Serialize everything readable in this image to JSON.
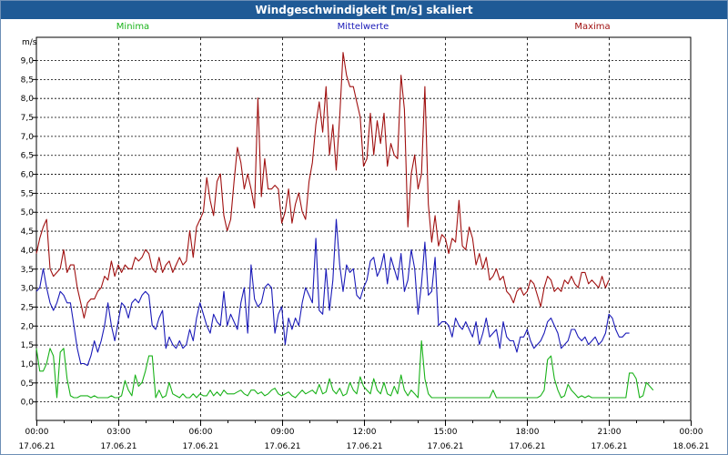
{
  "window": {
    "title": "Windgeschwindigkeit [m/s] skaliert"
  },
  "chart_data": {
    "type": "line",
    "title": "Windgeschwindigkeit [m/s] skaliert",
    "ylabel": "m/s",
    "ylim": [
      -0.5,
      9.6
    ],
    "yticks": [
      "9,0",
      "8,5",
      "8,0",
      "7,5",
      "7,0",
      "6,5",
      "6,0",
      "5,5",
      "5,0",
      "4,5",
      "4,0",
      "3,5",
      "3,0",
      "2,5",
      "2,0",
      "1,5",
      "1,0",
      "0,5",
      "0,0"
    ],
    "xticks": [
      {
        "time": "00:00",
        "date": "17.06.21"
      },
      {
        "time": "03:00",
        "date": "17.06.21"
      },
      {
        "time": "06:00",
        "date": "17.06.21"
      },
      {
        "time": "09:00",
        "date": "17.06.21"
      },
      {
        "time": "12:00",
        "date": "17.06.21"
      },
      {
        "time": "15:00",
        "date": "17.06.21"
      },
      {
        "time": "18:00",
        "date": "17.06.21"
      },
      {
        "time": "21:00",
        "date": "17.06.21"
      },
      {
        "time": "00:00",
        "date": "18.06.21"
      }
    ],
    "x_step_hours": 0.125,
    "grid": true,
    "legend_position": "top",
    "series": [
      {
        "name": "Minima",
        "color": "#19b219",
        "values": [
          1.4,
          0.8,
          0.8,
          1.0,
          1.4,
          1.2,
          0.1,
          1.3,
          1.4,
          0.6,
          0.15,
          0.1,
          0.1,
          0.15,
          0.15,
          0.15,
          0.1,
          0.15,
          0.1,
          0.1,
          0.1,
          0.1,
          0.15,
          0.1,
          0.1,
          0.15,
          0.55,
          0.3,
          0.15,
          0.7,
          0.4,
          0.5,
          0.8,
          1.2,
          1.2,
          0.1,
          0.3,
          0.1,
          0.15,
          0.5,
          0.2,
          0.15,
          0.1,
          0.2,
          0.1,
          0.1,
          0.2,
          0.1,
          0.2,
          0.15,
          0.15,
          0.3,
          0.15,
          0.25,
          0.15,
          0.3,
          0.2,
          0.2,
          0.2,
          0.25,
          0.3,
          0.2,
          0.15,
          0.3,
          0.3,
          0.2,
          0.25,
          0.15,
          0.2,
          0.3,
          0.35,
          0.2,
          0.15,
          0.2,
          0.25,
          0.15,
          0.1,
          0.2,
          0.3,
          0.2,
          0.25,
          0.3,
          0.2,
          0.45,
          0.2,
          0.25,
          0.6,
          0.3,
          0.2,
          0.35,
          0.15,
          0.2,
          0.5,
          0.3,
          0.2,
          0.65,
          0.4,
          0.3,
          0.2,
          0.6,
          0.3,
          0.2,
          0.5,
          0.2,
          0.15,
          0.4,
          0.2,
          0.7,
          0.3,
          0.15,
          0.3,
          0.2,
          0.1,
          1.6,
          0.6,
          0.2,
          0.1,
          0.1,
          0.1,
          0.1,
          0.1,
          0.1,
          0.1,
          0.1,
          0.1,
          0.1,
          0.1,
          0.1,
          0.1,
          0.1,
          0.1,
          0.1,
          0.1,
          0.1,
          0.3,
          0.1,
          0.1,
          0.1,
          0.1,
          0.1,
          0.1,
          0.1,
          0.1,
          0.1,
          0.1,
          0.1,
          0.1,
          0.1,
          0.15,
          0.3,
          1.1,
          1.2,
          0.6,
          0.3,
          0.1,
          0.15,
          0.45,
          0.3,
          0.2,
          0.1,
          0.15,
          0.1,
          0.15,
          0.1,
          0.1,
          0.1,
          0.1,
          0.1,
          0.1,
          0.1,
          0.1,
          0.1,
          0.1,
          0.1,
          0.75,
          0.75,
          0.6,
          0.1,
          0.15,
          0.5,
          0.4,
          0.3
        ]
      },
      {
        "name": "Mittelwerte",
        "color": "#1a1ab8",
        "values": [
          2.9,
          3.0,
          3.5,
          3.0,
          2.6,
          2.4,
          2.6,
          2.9,
          2.8,
          2.6,
          2.6,
          2.0,
          1.4,
          1.0,
          1.0,
          0.95,
          1.2,
          1.6,
          1.3,
          1.6,
          2.0,
          2.6,
          2.0,
          1.6,
          2.1,
          2.6,
          2.5,
          2.2,
          2.6,
          2.7,
          2.6,
          2.8,
          2.9,
          2.8,
          2.0,
          1.9,
          2.2,
          2.4,
          1.4,
          1.7,
          1.5,
          1.4,
          1.6,
          1.4,
          1.5,
          1.9,
          1.6,
          2.2,
          2.6,
          2.3,
          2.0,
          1.8,
          2.3,
          2.1,
          2.0,
          2.9,
          2.0,
          2.3,
          2.1,
          1.9,
          2.6,
          3.0,
          1.8,
          3.6,
          2.7,
          2.5,
          2.6,
          3.0,
          3.1,
          3.0,
          1.8,
          2.3,
          2.5,
          1.5,
          2.2,
          1.9,
          2.2,
          2.0,
          2.6,
          3.0,
          2.8,
          2.6,
          4.3,
          2.4,
          2.3,
          3.5,
          2.4,
          3.2,
          4.8,
          3.6,
          2.9,
          3.6,
          3.4,
          3.5,
          2.8,
          2.7,
          3.0,
          3.2,
          3.7,
          3.8,
          3.3,
          3.5,
          3.9,
          3.1,
          3.8,
          3.5,
          3.2,
          3.9,
          2.9,
          3.2,
          4.0,
          3.5,
          2.3,
          3.1,
          4.2,
          2.8,
          2.9,
          3.8,
          2.0,
          2.1,
          2.1,
          2.0,
          1.7,
          2.2,
          2.0,
          1.9,
          2.1,
          1.9,
          1.7,
          2.1,
          1.5,
          1.8,
          2.2,
          1.7,
          1.8,
          1.9,
          1.4,
          2.1,
          1.7,
          1.6,
          1.6,
          1.3,
          1.7,
          1.7,
          1.9,
          1.6,
          1.4,
          1.5,
          1.6,
          1.8,
          2.1,
          2.2,
          2.0,
          1.8,
          1.4,
          1.5,
          1.6,
          1.9,
          1.9,
          1.7,
          1.6,
          1.7,
          1.5,
          1.6,
          1.7,
          1.5,
          1.6,
          1.8,
          2.3,
          2.2,
          1.9,
          1.7,
          1.7,
          1.8,
          1.8
        ]
      },
      {
        "name": "Maxima",
        "color": "#a01010",
        "values": [
          3.9,
          4.3,
          4.6,
          4.8,
          3.5,
          3.3,
          3.4,
          3.5,
          4.0,
          3.4,
          3.6,
          3.6,
          3.0,
          2.6,
          2.2,
          2.6,
          2.7,
          2.7,
          2.9,
          3.0,
          3.3,
          3.2,
          3.7,
          3.3,
          3.6,
          3.4,
          3.6,
          3.5,
          3.5,
          3.8,
          3.7,
          3.8,
          4.0,
          3.9,
          3.5,
          3.4,
          3.8,
          3.4,
          3.6,
          3.7,
          3.4,
          3.6,
          3.8,
          3.6,
          3.7,
          4.5,
          3.8,
          4.6,
          4.8,
          5.0,
          5.9,
          5.3,
          4.9,
          5.8,
          6.0,
          4.9,
          4.5,
          4.8,
          5.8,
          6.7,
          6.3,
          5.6,
          6.0,
          5.6,
          5.1,
          8.0,
          5.4,
          6.4,
          5.6,
          5.6,
          5.7,
          5.6,
          4.7,
          5.0,
          5.6,
          4.7,
          5.2,
          5.5,
          5.0,
          4.8,
          5.8,
          6.3,
          7.3,
          7.9,
          7.1,
          8.3,
          6.5,
          7.3,
          6.1,
          7.5,
          9.2,
          8.6,
          8.3,
          8.3,
          7.9,
          7.5,
          6.2,
          6.4,
          7.6,
          6.5,
          7.4,
          6.8,
          7.6,
          6.2,
          6.8,
          6.5,
          6.4,
          8.6,
          7.7,
          4.6,
          6.0,
          6.5,
          5.6,
          6.0,
          8.3,
          5.2,
          4.2,
          4.9,
          4.1,
          4.4,
          4.3,
          3.9,
          4.3,
          4.2,
          5.3,
          4.1,
          4.0,
          4.6,
          4.3,
          3.6,
          3.9,
          3.5,
          3.8,
          3.2,
          3.3,
          3.5,
          3.2,
          3.3,
          2.9,
          2.8,
          2.6,
          2.9,
          3.0,
          2.8,
          2.9,
          3.2,
          3.1,
          2.8,
          2.5,
          3.0,
          3.3,
          3.2,
          2.9,
          3.0,
          2.9,
          3.2,
          3.1,
          3.3,
          3.1,
          3.0,
          3.4,
          3.4,
          3.1,
          3.2,
          3.1,
          3.0,
          3.3,
          3.0,
          3.2
        ]
      }
    ]
  }
}
